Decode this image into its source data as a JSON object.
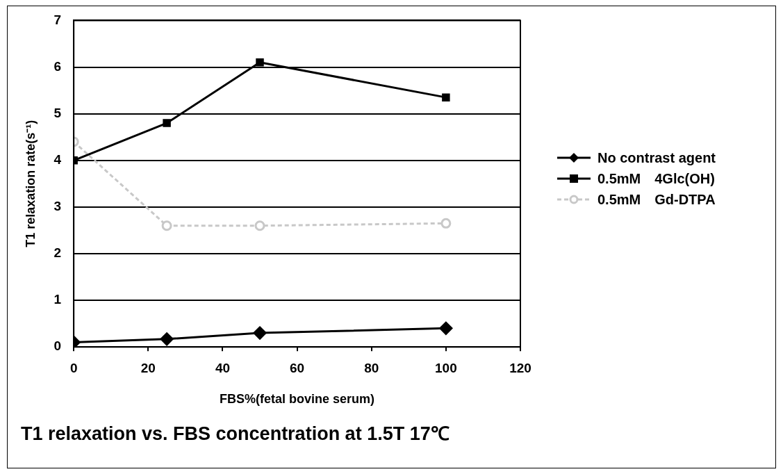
{
  "chart_data": {
    "type": "line",
    "title": "T1 relaxation vs. FBS concentration at 1.5T 17℃",
    "xlabel": "FBS%(fetal bovine serum)",
    "ylabel": "T1 relaxation rate(s⁻¹)",
    "x": [
      0,
      25,
      50,
      100
    ],
    "series": [
      {
        "name": "No contrast agent",
        "color": "#000000",
        "marker": "diamond",
        "values": [
          0.1,
          0.17,
          0.3,
          0.4
        ]
      },
      {
        "name": "0.5mM　4Glc(OH)",
        "color": "#000000",
        "marker": "square",
        "values": [
          4.0,
          4.8,
          6.1,
          5.35
        ]
      },
      {
        "name": "0.5mM　Gd-DTPA",
        "color": "#c8c8c8",
        "marker": "circle",
        "line_style": "dashed",
        "values": [
          4.4,
          2.6,
          2.6,
          2.65
        ]
      }
    ],
    "xlim": [
      0,
      120
    ],
    "xticks": [
      0,
      20,
      40,
      60,
      80,
      100,
      120
    ],
    "ylim": [
      0,
      7
    ],
    "yticks": [
      0,
      1,
      2,
      3,
      4,
      5,
      6,
      7
    ],
    "grid": "y",
    "legend": "right"
  }
}
